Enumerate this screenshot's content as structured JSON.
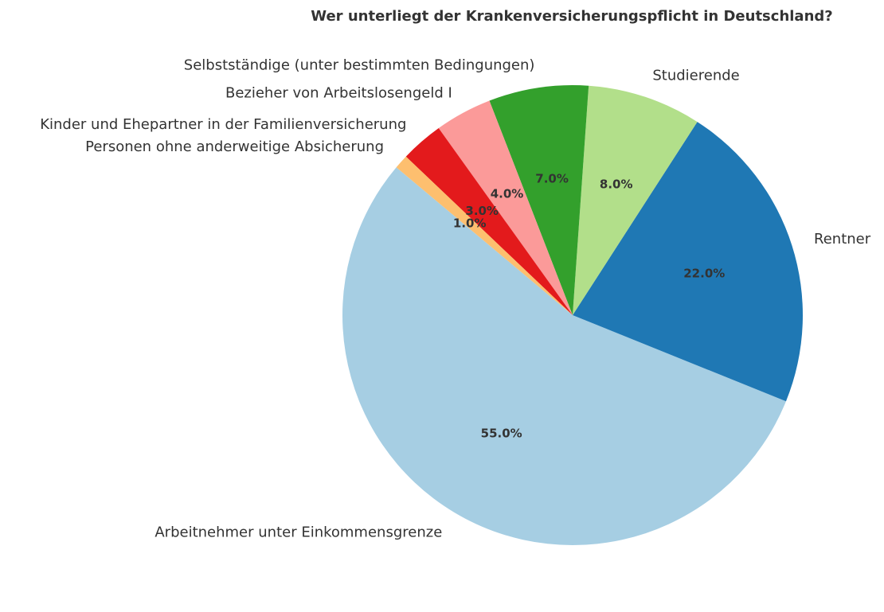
{
  "chart_data": {
    "type": "pie",
    "title": "Wer unterliegt der Krankenversicherungspflicht in Deutschland?",
    "start_angle_deg": 140,
    "direction": "counterclockwise",
    "legend": "none",
    "slices": [
      {
        "label": "Arbeitnehmer unter Einkommensgrenze",
        "value": 55,
        "pct_label": "55.0%",
        "color": "#a6cee3"
      },
      {
        "label": "Rentner",
        "value": 22,
        "pct_label": "22.0%",
        "color": "#1f78b4"
      },
      {
        "label": "Studierende",
        "value": 8,
        "pct_label": "8.0%",
        "color": "#b2df8a"
      },
      {
        "label": "Selbstständige (unter bestimmten Bedingungen)",
        "value": 7,
        "pct_label": "7.0%",
        "color": "#33a02c"
      },
      {
        "label": "Bezieher von Arbeitslosengeld I",
        "value": 4,
        "pct_label": "4.0%",
        "color": "#fb9a99"
      },
      {
        "label": "Kinder und Ehepartner in der Familienversicherung",
        "value": 3,
        "pct_label": "3.0%",
        "color": "#e31a1c"
      },
      {
        "label": "Personen ohne anderweitige Absicherung",
        "value": 1,
        "pct_label": "1.0%",
        "color": "#fdbf6f"
      }
    ]
  }
}
